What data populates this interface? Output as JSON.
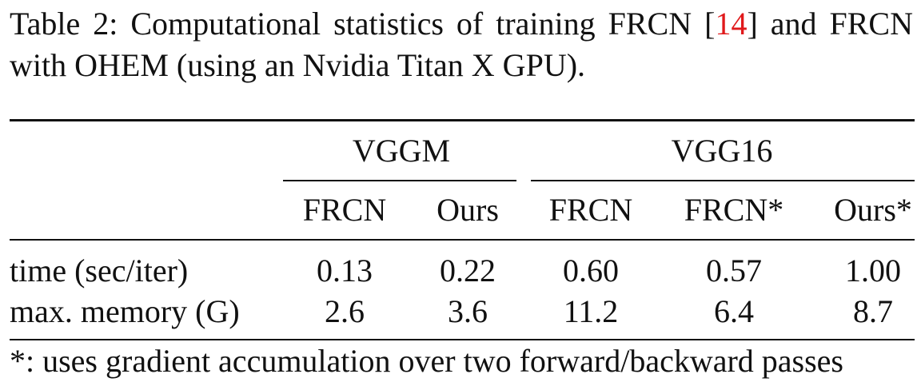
{
  "caption": {
    "prefix": "Table 2: Computational statistics of training FRCN [",
    "citation": "14",
    "suffix": "] and FRCN with OHEM (using an Nvidia Titan X GPU)."
  },
  "table": {
    "groups": [
      "VGGM",
      "VGG16"
    ],
    "columns": [
      "FRCN",
      "Ours",
      "FRCN",
      "FRCN*",
      "Ours*"
    ],
    "rows": [
      {
        "label": "time (sec/iter)",
        "values": [
          "0.13",
          "0.22",
          "0.60",
          "0.57",
          "1.00"
        ]
      },
      {
        "label": "max. memory (G)",
        "values": [
          "2.6",
          "3.6",
          "11.2",
          "6.4",
          "8.7"
        ]
      }
    ]
  },
  "footnote": "*: uses gradient accumulation over two forward/backward passes",
  "colors": {
    "text": "#111111",
    "citation": "#e0191b"
  }
}
